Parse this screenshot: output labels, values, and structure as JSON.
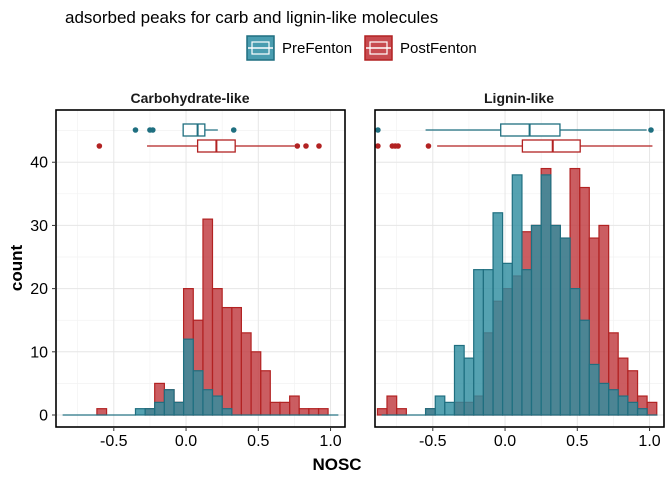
{
  "chart_data": {
    "type": "histogram",
    "title": "adsorbed peaks for carb and lignin-like molecules",
    "xlabel": "NOSC",
    "ylabel": "count",
    "xlim": [
      -0.9,
      1.1
    ],
    "ylim": [
      0,
      47
    ],
    "x_ticks": [
      -0.5,
      0.0,
      0.5,
      1.0
    ],
    "x_tick_labels": [
      "-0.5",
      "0.0",
      "0.5",
      "1.0"
    ],
    "y_ticks": [
      0,
      10,
      20,
      30,
      40
    ],
    "y_tick_labels": [
      "0",
      "10",
      "20",
      "30",
      "40"
    ],
    "bin_width": 0.067,
    "legend_position": "top",
    "series": [
      {
        "name": "PreFenton",
        "fill": "#2f8ea0",
        "stroke": "#1f6f80"
      },
      {
        "name": "PostFenton",
        "fill": "#c0393e",
        "stroke": "#b22222"
      }
    ],
    "panels": [
      {
        "label": "Carbohydrate-like",
        "histograms": {
          "PreFenton": [
            {
              "x0": -0.85,
              "x1": -0.35,
              "count": 0
            },
            {
              "x0": -0.35,
              "x1": -0.283,
              "count": 1
            },
            {
              "x0": -0.283,
              "x1": -0.217,
              "count": 1
            },
            {
              "x0": -0.217,
              "x1": -0.15,
              "count": 2
            },
            {
              "x0": -0.15,
              "x1": -0.083,
              "count": 4
            },
            {
              "x0": -0.083,
              "x1": -0.017,
              "count": 2
            },
            {
              "x0": -0.017,
              "x1": 0.05,
              "count": 12
            },
            {
              "x0": 0.05,
              "x1": 0.117,
              "count": 7
            },
            {
              "x0": 0.117,
              "x1": 0.183,
              "count": 4
            },
            {
              "x0": 0.183,
              "x1": 0.25,
              "count": 3
            },
            {
              "x0": 0.25,
              "x1": 0.317,
              "count": 1
            },
            {
              "x0": 0.317,
              "x1": 1.05,
              "count": 0
            }
          ],
          "PostFenton": [
            {
              "x0": -0.617,
              "x1": -0.55,
              "count": 1
            },
            {
              "x0": -0.283,
              "x1": -0.217,
              "count": 1
            },
            {
              "x0": -0.217,
              "x1": -0.15,
              "count": 5
            },
            {
              "x0": -0.15,
              "x1": -0.083,
              "count": 4
            },
            {
              "x0": -0.083,
              "x1": -0.017,
              "count": 2
            },
            {
              "x0": -0.017,
              "x1": 0.05,
              "count": 20
            },
            {
              "x0": 0.05,
              "x1": 0.117,
              "count": 15
            },
            {
              "x0": 0.117,
              "x1": 0.183,
              "count": 31
            },
            {
              "x0": 0.183,
              "x1": 0.25,
              "count": 20
            },
            {
              "x0": 0.25,
              "x1": 0.317,
              "count": 17
            },
            {
              "x0": 0.317,
              "x1": 0.383,
              "count": 17
            },
            {
              "x0": 0.383,
              "x1": 0.45,
              "count": 13
            },
            {
              "x0": 0.45,
              "x1": 0.517,
              "count": 10
            },
            {
              "x0": 0.517,
              "x1": 0.583,
              "count": 7
            },
            {
              "x0": 0.583,
              "x1": 0.65,
              "count": 2
            },
            {
              "x0": 0.65,
              "x1": 0.717,
              "count": 2
            },
            {
              "x0": 0.717,
              "x1": 0.783,
              "count": 3
            },
            {
              "x0": 0.783,
              "x1": 0.85,
              "count": 1
            },
            {
              "x0": 0.85,
              "x1": 0.917,
              "count": 1
            },
            {
              "x0": 0.917,
              "x1": 0.983,
              "count": 1
            }
          ]
        },
        "boxplots": {
          "PreFenton": {
            "whisker_low": -0.02,
            "q1": -0.02,
            "median": 0.08,
            "q3": 0.13,
            "whisker_high": 0.22,
            "outliers": [
              -0.35,
              -0.25,
              -0.23,
              0.33
            ]
          },
          "PostFenton": {
            "whisker_low": -0.27,
            "q1": 0.08,
            "median": 0.21,
            "q3": 0.34,
            "whisker_high": 0.75,
            "outliers": [
              -0.6,
              0.77,
              0.83,
              0.92
            ]
          }
        }
      },
      {
        "label": "Lignin-like",
        "histograms": {
          "PreFenton": [
            {
              "x0": -0.85,
              "x1": -0.55,
              "count": 0
            },
            {
              "x0": -0.55,
              "x1": -0.483,
              "count": 1
            },
            {
              "x0": -0.483,
              "x1": -0.417,
              "count": 3
            },
            {
              "x0": -0.417,
              "x1": -0.35,
              "count": 2
            },
            {
              "x0": -0.35,
              "x1": -0.283,
              "count": 11
            },
            {
              "x0": -0.283,
              "x1": -0.217,
              "count": 9
            },
            {
              "x0": -0.217,
              "x1": -0.15,
              "count": 23
            },
            {
              "x0": -0.15,
              "x1": -0.083,
              "count": 23
            },
            {
              "x0": -0.083,
              "x1": -0.017,
              "count": 32
            },
            {
              "x0": -0.017,
              "x1": 0.05,
              "count": 24
            },
            {
              "x0": 0.05,
              "x1": 0.117,
              "count": 38
            },
            {
              "x0": 0.117,
              "x1": 0.183,
              "count": 23
            },
            {
              "x0": 0.183,
              "x1": 0.25,
              "count": 30
            },
            {
              "x0": 0.25,
              "x1": 0.317,
              "count": 38
            },
            {
              "x0": 0.317,
              "x1": 0.383,
              "count": 30
            },
            {
              "x0": 0.383,
              "x1": 0.45,
              "count": 28
            },
            {
              "x0": 0.45,
              "x1": 0.517,
              "count": 20
            },
            {
              "x0": 0.517,
              "x1": 0.583,
              "count": 15
            },
            {
              "x0": 0.583,
              "x1": 0.65,
              "count": 8
            },
            {
              "x0": 0.65,
              "x1": 0.717,
              "count": 5
            },
            {
              "x0": 0.717,
              "x1": 0.783,
              "count": 4
            },
            {
              "x0": 0.783,
              "x1": 0.85,
              "count": 3
            },
            {
              "x0": 0.85,
              "x1": 0.917,
              "count": 2
            },
            {
              "x0": 0.917,
              "x1": 0.983,
              "count": 1
            },
            {
              "x0": 0.983,
              "x1": 1.05,
              "count": 0
            }
          ],
          "PostFenton": [
            {
              "x0": -0.883,
              "x1": -0.817,
              "count": 1
            },
            {
              "x0": -0.817,
              "x1": -0.75,
              "count": 3
            },
            {
              "x0": -0.75,
              "x1": -0.683,
              "count": 1
            },
            {
              "x0": -0.55,
              "x1": -0.483,
              "count": 1
            },
            {
              "x0": -0.35,
              "x1": -0.283,
              "count": 2
            },
            {
              "x0": -0.283,
              "x1": -0.217,
              "count": 2
            },
            {
              "x0": -0.217,
              "x1": -0.15,
              "count": 3
            },
            {
              "x0": -0.15,
              "x1": -0.083,
              "count": 13
            },
            {
              "x0": -0.083,
              "x1": -0.017,
              "count": 18
            },
            {
              "x0": -0.017,
              "x1": 0.05,
              "count": 20
            },
            {
              "x0": 0.05,
              "x1": 0.117,
              "count": 22
            },
            {
              "x0": 0.117,
              "x1": 0.183,
              "count": 29
            },
            {
              "x0": 0.183,
              "x1": 0.25,
              "count": 30
            },
            {
              "x0": 0.25,
              "x1": 0.317,
              "count": 39
            },
            {
              "x0": 0.317,
              "x1": 0.383,
              "count": 30
            },
            {
              "x0": 0.383,
              "x1": 0.45,
              "count": 28
            },
            {
              "x0": 0.45,
              "x1": 0.517,
              "count": 39
            },
            {
              "x0": 0.517,
              "x1": 0.583,
              "count": 36
            },
            {
              "x0": 0.583,
              "x1": 0.65,
              "count": 28
            },
            {
              "x0": 0.65,
              "x1": 0.717,
              "count": 30
            },
            {
              "x0": 0.717,
              "x1": 0.783,
              "count": 13
            },
            {
              "x0": 0.783,
              "x1": 0.85,
              "count": 9
            },
            {
              "x0": 0.85,
              "x1": 0.917,
              "count": 7
            },
            {
              "x0": 0.917,
              "x1": 0.983,
              "count": 3
            },
            {
              "x0": 0.983,
              "x1": 1.05,
              "count": 2
            }
          ]
        },
        "boxplots": {
          "PreFenton": {
            "whisker_low": -0.55,
            "q1": -0.03,
            "median": 0.17,
            "q3": 0.38,
            "whisker_high": 0.98,
            "outliers": [
              -0.88,
              1.01
            ]
          },
          "PostFenton": {
            "whisker_low": -0.47,
            "q1": 0.12,
            "median": 0.33,
            "q3": 0.52,
            "whisker_high": 1.02,
            "outliers": [
              -0.88,
              -0.78,
              -0.76,
              -0.74,
              -0.53
            ]
          }
        }
      }
    ]
  }
}
